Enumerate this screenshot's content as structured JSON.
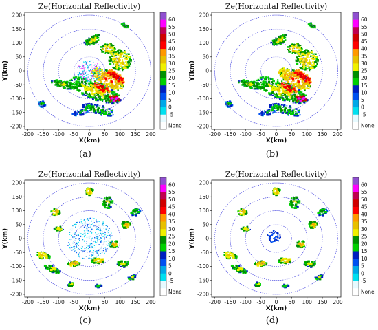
{
  "chart_data": [
    {
      "type": "heatmap",
      "panel_label": "(a)",
      "title": "Ze(Horizontal Reflectivity)",
      "xlabel": "X(km)",
      "ylabel": "Y(km)",
      "xlim": [
        -210,
        210
      ],
      "ylim": [
        -210,
        210
      ],
      "xticks": [
        "-200",
        "-150",
        "-100",
        "-50",
        "0",
        "50",
        "100",
        "150",
        "200"
      ],
      "yticks": [
        "200",
        "150",
        "100",
        "50",
        "0",
        "-50",
        "-100",
        "-150",
        "-200"
      ],
      "range_rings_km": [
        50,
        100,
        150,
        200
      ],
      "colorbar_labels": [
        "60",
        "55",
        "50",
        "45",
        "40",
        "35",
        "30",
        "25",
        "20",
        "15",
        "10",
        "5",
        "0",
        "-5",
        "None"
      ],
      "pattern": "broad-band-with-clutter",
      "seed": 11
    },
    {
      "type": "heatmap",
      "panel_label": "(b)",
      "title": "Ze(Horizontal Reflectivity)",
      "xlabel": "X(km)",
      "ylabel": "Y(km)",
      "xlim": [
        -210,
        210
      ],
      "ylim": [
        -210,
        210
      ],
      "xticks": [
        "-200",
        "-150",
        "-100",
        "-50",
        "0",
        "50",
        "100",
        "150",
        "200"
      ],
      "yticks": [
        "200",
        "150",
        "100",
        "50",
        "0",
        "-50",
        "-100",
        "-150",
        "-200"
      ],
      "range_rings_km": [
        50,
        100,
        150,
        200
      ],
      "colorbar_labels": [
        "60",
        "55",
        "50",
        "45",
        "40",
        "35",
        "30",
        "25",
        "20",
        "15",
        "10",
        "5",
        "0",
        "-5",
        "None"
      ],
      "pattern": "broad-band-clean",
      "seed": 11
    },
    {
      "type": "heatmap",
      "panel_label": "(c)",
      "title": "Ze(Horizontal Reflectivity)",
      "xlabel": "X(km)",
      "ylabel": "Y(km)",
      "xlim": [
        -210,
        210
      ],
      "ylim": [
        -210,
        210
      ],
      "xticks": [
        "-200",
        "-150",
        "-100",
        "-50",
        "0",
        "50",
        "100",
        "150",
        "200"
      ],
      "yticks": [
        "200",
        "150",
        "100",
        "50",
        "0",
        "-50",
        "-100",
        "-150",
        "-200"
      ],
      "range_rings_km": [
        50,
        100,
        150,
        200
      ],
      "colorbar_labels": [
        "60",
        "55",
        "50",
        "45",
        "40",
        "35",
        "30",
        "25",
        "20",
        "15",
        "10",
        "5",
        "0",
        "-5",
        "None"
      ],
      "pattern": "scattered-cells-with-clutter",
      "seed": 29
    },
    {
      "type": "heatmap",
      "panel_label": "(d)",
      "title": "Ze(Horizontal Reflectivity)",
      "xlabel": "X(km)",
      "ylabel": "Y(km)",
      "xlim": [
        -210,
        210
      ],
      "ylim": [
        -210,
        210
      ],
      "xticks": [
        "-200",
        "-150",
        "-100",
        "-50",
        "0",
        "50",
        "100",
        "150",
        "200"
      ],
      "yticks": [
        "200",
        "150",
        "100",
        "50",
        "0",
        "-50",
        "-100",
        "-150",
        "-200"
      ],
      "range_rings_km": [
        50,
        100,
        150,
        200
      ],
      "colorbar_labels": [
        "60",
        "55",
        "50",
        "45",
        "40",
        "35",
        "30",
        "25",
        "20",
        "15",
        "10",
        "5",
        "0",
        "-5",
        "None"
      ],
      "pattern": "scattered-cells-clean",
      "seed": 29
    }
  ],
  "colors": {
    "scale": [
      "#ffffff",
      "#e6faff",
      "#00e0f0",
      "#00a8e8",
      "#0050f0",
      "#0020c0",
      "#00d000",
      "#009000",
      "#f0f000",
      "#e8c000",
      "#ff9800",
      "#ff0000",
      "#d00000",
      "#c00050",
      "#ff00ff",
      "#9050d0"
    ],
    "range_ring": "#4a4ae0"
  }
}
